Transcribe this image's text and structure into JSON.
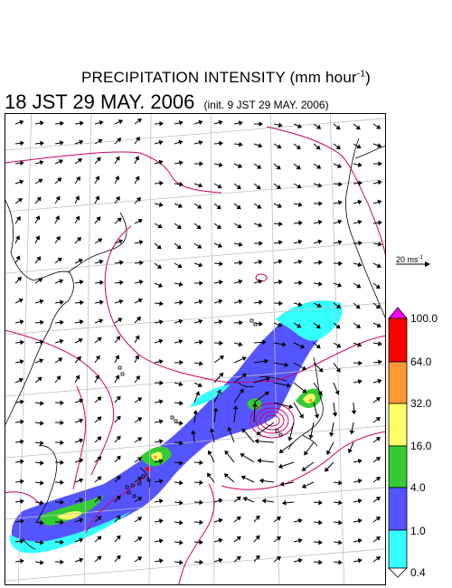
{
  "title": {
    "main": "PRECIPITATION INTENSITY (mm hour",
    "superscript": "-1",
    "close": ")",
    "datetime": "18 JST 29 MAY. 2006",
    "init": "(init. 9 JST 29 MAY. 2006)"
  },
  "scale_vector": {
    "label": "20 ms",
    "superscript": "-1"
  },
  "colorbar": {
    "levels": [
      "100.0",
      "64.0",
      "32.0",
      "16.0",
      "4.0",
      "1.0",
      "0.4"
    ],
    "colors": [
      "#ff00ff",
      "#ff0000",
      "#ff9933",
      "#ffff66",
      "#33cc33",
      "#5555ff",
      "#33ffff",
      "#ffffff"
    ]
  },
  "map": {
    "frame_color": "#000000",
    "grid_color": "#bfbfbf",
    "contour_color": "#cc0066",
    "coast_color": "#000000",
    "vector_color": "#000000"
  }
}
